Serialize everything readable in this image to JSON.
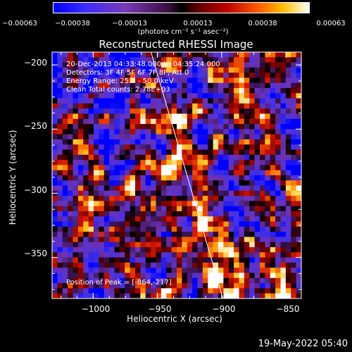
{
  "chart_data": {
    "type": "heatmap",
    "title": "Reconstructed RHESSI Image",
    "xlabel": "Heliocentric X (arcsec)",
    "ylabel": "Heliocentric Y (arcsec)",
    "xlim": [
      -1032,
      -838
    ],
    "ylim": [
      -382,
      -190
    ],
    "x_ticks": [
      "−1000",
      "−950",
      "−900",
      "−850"
    ],
    "x_tick_values": [
      -1000,
      -950,
      -900,
      -850
    ],
    "y_ticks": [
      "−200",
      "−250",
      "−300",
      "−350"
    ],
    "y_tick_values": [
      -200,
      -250,
      -300,
      -350
    ],
    "colorbar": {
      "ticks": [
        "−0.00063",
        "−0.00038",
        "−0.00013",
        "0.00013",
        "0.00038",
        "0.00063"
      ],
      "min": -0.00063,
      "max": 0.00063,
      "unit_text": "(photons cm⁻² s⁻¹ asec⁻²)"
    },
    "annotations": {
      "time": "20-Dec-2013 04:33:48.000 to 04:35:24.000",
      "detectors": "Detectors: 3F 4F 5F 6F 7F 8F, Att 0",
      "energy": "Energy Range: 25.0 - 50.0 keV",
      "clean": "Clean     Total counts: 2.78E+03",
      "peak": "Position of Peak = [-864,-217]"
    },
    "limb_line": [
      [
        -955,
        -190
      ],
      [
        -899,
        -382
      ]
    ]
  },
  "footer": {
    "timestamp": "19-May-2022 05:40"
  }
}
